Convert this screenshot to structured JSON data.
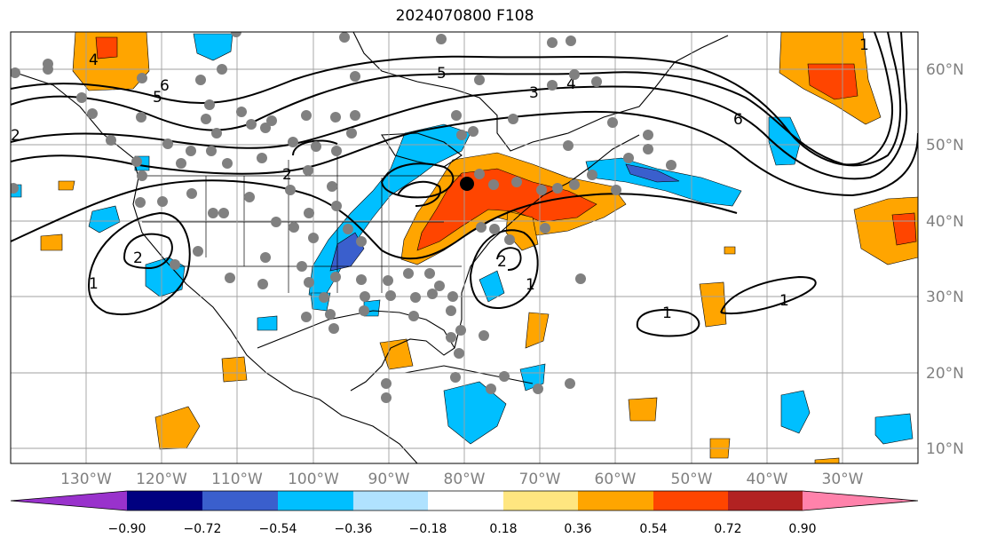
{
  "title": "2024070800 F108",
  "map": {
    "projection": "PlateCarree",
    "lon_range": [
      -140,
      -20
    ],
    "lat_range": [
      8,
      65
    ],
    "lat_ticks": [
      "60°N",
      "50°N",
      "40°N",
      "30°N",
      "20°N",
      "10°N"
    ],
    "lon_ticks": [
      "130°W",
      "120°W",
      "110°W",
      "100°W",
      "90°W",
      "80°W",
      "70°W",
      "60°W",
      "50°W",
      "40°W",
      "30°W"
    ],
    "contour_labels": [
      "4",
      "5",
      "6",
      "5",
      "3",
      "4",
      "6",
      "1",
      "2",
      "2",
      "1",
      "1",
      "2",
      "1",
      "1",
      "2"
    ],
    "marker": {
      "label": "location-marker",
      "lon": -80.0,
      "lat": 44.8
    }
  },
  "colorbar": {
    "ticks": [
      "−0.90",
      "−0.72",
      "−0.54",
      "−0.36",
      "−0.18",
      "0.18",
      "0.36",
      "0.54",
      "0.72",
      "0.90"
    ],
    "colors": [
      "#9932cc",
      "#000080",
      "#3a5fcd",
      "#00bfff",
      "#b0e2ff",
      "#ffffff",
      "#ffe680",
      "#ffa500",
      "#ff4500",
      "#b22222",
      "#ff82ab"
    ]
  }
}
